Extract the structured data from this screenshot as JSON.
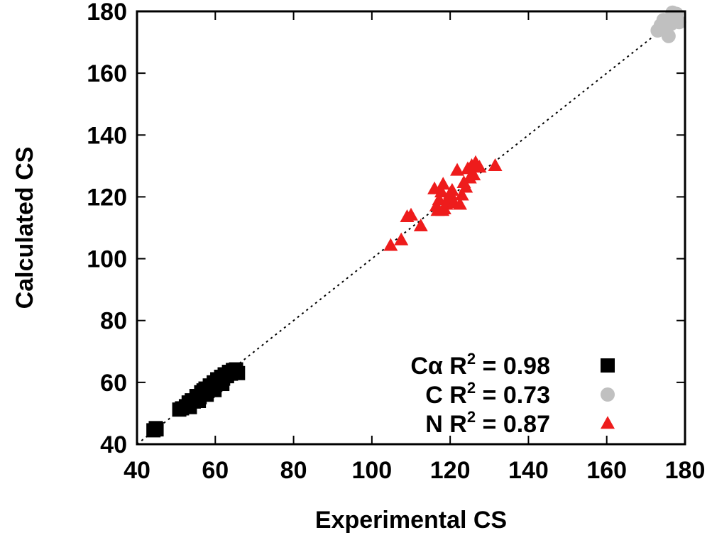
{
  "chart_data": {
    "type": "scatter",
    "title": "",
    "xlabel": "Experimental CS",
    "ylabel": "Calculated CS",
    "xlim": [
      40,
      180
    ],
    "ylim": [
      40,
      180
    ],
    "xticks": [
      40,
      60,
      80,
      100,
      120,
      140,
      160,
      180
    ],
    "yticks": [
      40,
      60,
      80,
      100,
      120,
      140,
      160,
      180
    ],
    "legend_position": "bottom-right",
    "reference_line": {
      "style": "dotted",
      "from": [
        40,
        40
      ],
      "to": [
        180,
        180
      ]
    },
    "series": [
      {
        "name": "Cα",
        "legend_prefix": "Cα R",
        "legend_sup": "2",
        "legend_suffix": " = 0.98",
        "marker": "square",
        "color": "#000000",
        "points": [
          [
            44.2,
            44.5
          ],
          [
            44.8,
            45.2
          ],
          [
            45.0,
            44.8
          ],
          [
            50.8,
            51.2
          ],
          [
            51.5,
            51.6
          ],
          [
            52.5,
            52.3
          ],
          [
            53.2,
            53.5
          ],
          [
            54.0,
            54.2
          ],
          [
            54.5,
            53.8
          ],
          [
            55.2,
            55.6
          ],
          [
            56.0,
            55.2
          ],
          [
            56.4,
            56.8
          ],
          [
            57.0,
            57.4
          ],
          [
            57.5,
            58.0
          ],
          [
            58.0,
            57.2
          ],
          [
            58.6,
            59.0
          ],
          [
            59.0,
            58.3
          ],
          [
            59.6,
            60.0
          ],
          [
            60.0,
            59.2
          ],
          [
            60.5,
            61.0
          ],
          [
            61.0,
            60.3
          ],
          [
            61.5,
            61.8
          ],
          [
            62.0,
            61.2
          ],
          [
            62.4,
            62.6
          ],
          [
            63.0,
            62.0
          ],
          [
            63.5,
            63.4
          ],
          [
            64.0,
            62.8
          ],
          [
            64.5,
            64.0
          ],
          [
            65.0,
            63.5
          ],
          [
            65.3,
            64.2
          ],
          [
            65.8,
            63.0
          ],
          [
            53.5,
            52.0
          ],
          [
            55.8,
            54.0
          ],
          [
            57.8,
            56.0
          ],
          [
            59.8,
            57.5
          ],
          [
            61.8,
            59.5
          ]
        ]
      },
      {
        "name": "C",
        "legend_prefix": "C R",
        "legend_sup": "2",
        "legend_suffix": " = 0.73",
        "marker": "circle",
        "color": "#c0c0c0",
        "points": [
          [
            173.0,
            173.8
          ],
          [
            173.8,
            175.5
          ],
          [
            174.5,
            177.2
          ],
          [
            175.2,
            174.5
          ],
          [
            175.8,
            172.0
          ],
          [
            176.5,
            176.0
          ],
          [
            177.2,
            178.0
          ],
          [
            177.8,
            179.2
          ],
          [
            178.5,
            176.5
          ],
          [
            176.8,
            179.6
          ]
        ]
      },
      {
        "name": "N",
        "legend_prefix": "N R",
        "legend_sup": "2",
        "legend_suffix": " = 0.87",
        "marker": "triangle",
        "color": "#ee1c1c",
        "points": [
          [
            104.8,
            104.2
          ],
          [
            107.5,
            106.0
          ],
          [
            109.0,
            113.5
          ],
          [
            110.0,
            114.0
          ],
          [
            112.5,
            110.5
          ],
          [
            116.0,
            122.5
          ],
          [
            116.8,
            115.5
          ],
          [
            117.2,
            119.0
          ],
          [
            117.8,
            121.5
          ],
          [
            118.2,
            124.0
          ],
          [
            118.5,
            116.0
          ],
          [
            119.0,
            117.5
          ],
          [
            119.5,
            119.5
          ],
          [
            120.0,
            121.0
          ],
          [
            120.5,
            122.0
          ],
          [
            121.0,
            118.0
          ],
          [
            121.8,
            128.5
          ],
          [
            122.5,
            117.5
          ],
          [
            123.0,
            120.5
          ],
          [
            123.5,
            124.5
          ],
          [
            124.0,
            123.0
          ],
          [
            124.5,
            129.0
          ],
          [
            125.0,
            126.0
          ],
          [
            125.5,
            130.0
          ],
          [
            126.0,
            127.0
          ],
          [
            126.5,
            131.0
          ],
          [
            127.5,
            129.5
          ],
          [
            131.5,
            130.0
          ],
          [
            116.5,
            117.0
          ],
          [
            118.0,
            115.5
          ]
        ]
      }
    ]
  }
}
